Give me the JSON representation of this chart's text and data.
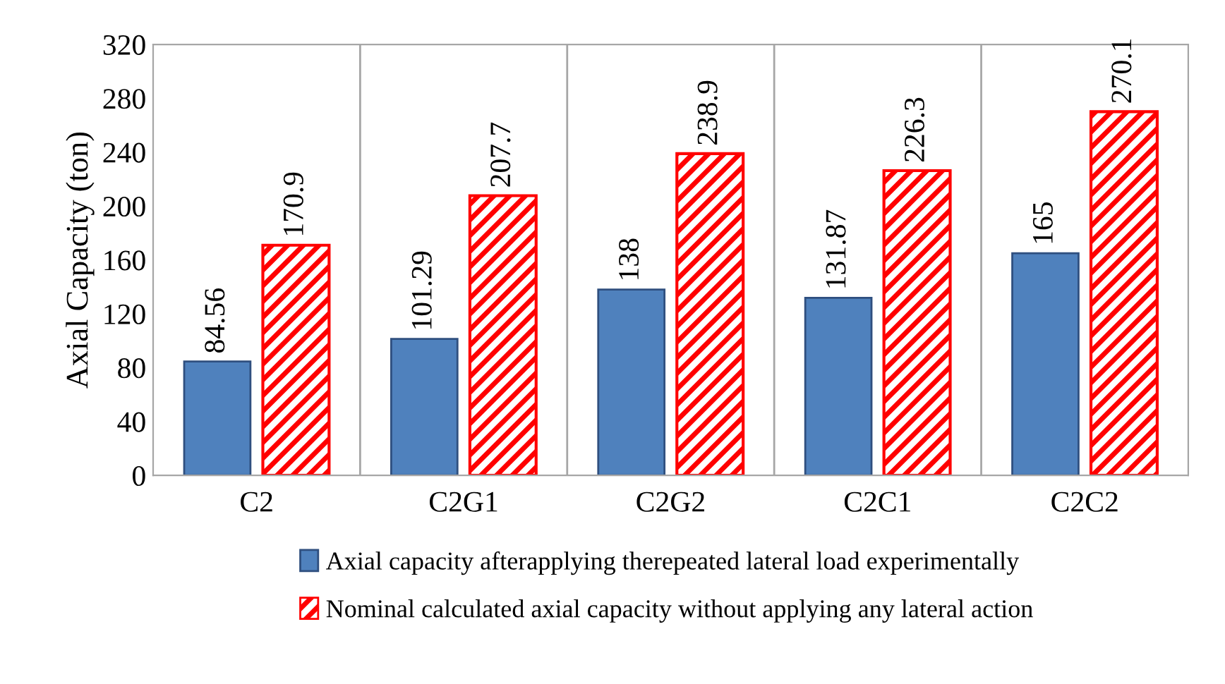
{
  "chart_data": {
    "type": "bar",
    "ylabel": "Axial Capacity (ton)",
    "categories": [
      "C2",
      "C2G1",
      "C2G2",
      "C2C1",
      "C2C2"
    ],
    "series": [
      {
        "name": "Axial capacity afterapplying therepeated lateral load experimentally",
        "color": "#4f81bd",
        "values": [
          84.56,
          101.29,
          138,
          131.87,
          165
        ]
      },
      {
        "name": "Nominal calculated axial capacity without applying any lateral action",
        "color": "#ff0000",
        "values": [
          170.9,
          207.7,
          238.9,
          226.3,
          270.1
        ]
      }
    ],
    "ylim": [
      0,
      320
    ],
    "yticks": [
      0,
      40,
      80,
      120,
      160,
      200,
      240,
      280,
      320
    ],
    "grid": "x",
    "legend": "bottom",
    "data_labels": true
  }
}
